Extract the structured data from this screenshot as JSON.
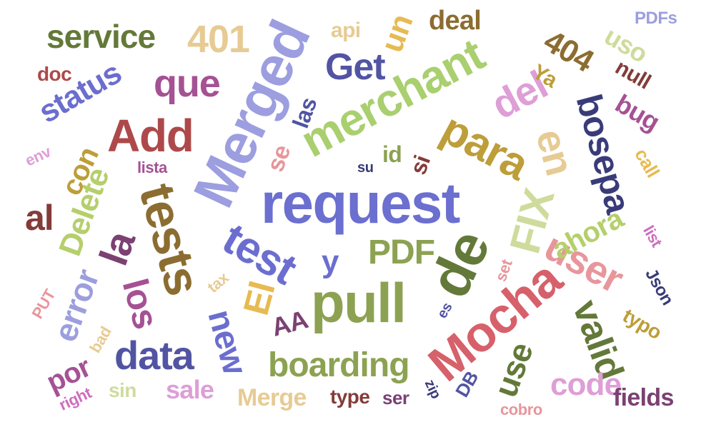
{
  "word_cloud": {
    "words": [
      {
        "text": "request",
        "color": "#6b6fcf"
      },
      {
        "text": "merchant",
        "color": "#a9cf6f"
      },
      {
        "text": "Merged",
        "color": "#9c9ee0"
      },
      {
        "text": "pull",
        "color": "#8ca252"
      },
      {
        "text": "de",
        "color": "#637939"
      },
      {
        "text": "Mocha",
        "color": "#d6616b"
      },
      {
        "text": "tests",
        "color": "#8c6d31"
      },
      {
        "text": "test",
        "color": "#6b6ecf"
      },
      {
        "text": "Add",
        "color": "#ad494a"
      },
      {
        "text": "para",
        "color": "#bd9e39"
      },
      {
        "text": "bosepa",
        "color": "#393b79"
      },
      {
        "text": "FIX",
        "color": "#cedb9c"
      },
      {
        "text": "user",
        "color": "#e7969c"
      },
      {
        "text": "en",
        "color": "#e7cb94"
      },
      {
        "text": "la",
        "color": "#7b4173"
      },
      {
        "text": "Delete",
        "color": "#b5cf6b"
      },
      {
        "text": "error",
        "color": "#9c9ede"
      },
      {
        "text": "valid",
        "color": "#637939"
      },
      {
        "text": "Get",
        "color": "#5254a3"
      },
      {
        "text": "que",
        "color": "#a55194"
      },
      {
        "text": "status",
        "color": "#6b6ecf"
      },
      {
        "text": "service",
        "color": "#637939"
      },
      {
        "text": "401",
        "color": "#e7cb94"
      },
      {
        "text": "404",
        "color": "#8c6d31"
      },
      {
        "text": "del",
        "color": "#de9ed6"
      },
      {
        "text": "los",
        "color": "#a55194"
      },
      {
        "text": "data",
        "color": "#5254a3"
      },
      {
        "text": "new",
        "color": "#6b6ecf"
      },
      {
        "text": "boarding",
        "color": "#8ca252"
      },
      {
        "text": "PDF",
        "color": "#8ca252"
      },
      {
        "text": "El",
        "color": "#e7ba52"
      },
      {
        "text": "code",
        "color": "#de9ed6"
      },
      {
        "text": "use",
        "color": "#637939"
      },
      {
        "text": "ahora",
        "color": "#b5cf6b"
      },
      {
        "text": "con",
        "color": "#bd9e39"
      },
      {
        "text": "al",
        "color": "#843c39"
      },
      {
        "text": "y",
        "color": "#6b6ecf"
      },
      {
        "text": "deal",
        "color": "#8c6d31"
      },
      {
        "text": "un",
        "color": "#e7ba52"
      },
      {
        "text": "api",
        "color": "#e7cb94"
      },
      {
        "text": "uso",
        "color": "#cedb9c"
      },
      {
        "text": "PDFs",
        "color": "#9c9ede"
      },
      {
        "text": "doc",
        "color": "#ad494a"
      },
      {
        "text": "Ya",
        "color": "#bd9e39"
      },
      {
        "text": "null",
        "color": "#843c39"
      },
      {
        "text": "bug",
        "color": "#a55194"
      },
      {
        "text": "las",
        "color": "#5254a3"
      },
      {
        "text": "se",
        "color": "#e7969c"
      },
      {
        "text": "id",
        "color": "#8ca252"
      },
      {
        "text": "si",
        "color": "#843c39"
      },
      {
        "text": "su",
        "color": "#393b79"
      },
      {
        "text": "env",
        "color": "#de9ed6"
      },
      {
        "text": "lista",
        "color": "#a55194"
      },
      {
        "text": "call",
        "color": "#e7ba52"
      },
      {
        "text": "list",
        "color": "#ce6dbd"
      },
      {
        "text": "Json",
        "color": "#393b79"
      },
      {
        "text": "set",
        "color": "#e7969c"
      },
      {
        "text": "tax",
        "color": "#e7cb94"
      },
      {
        "text": "PUT",
        "color": "#e7969c"
      },
      {
        "text": "bad",
        "color": "#e7cb94"
      },
      {
        "text": "AA",
        "color": "#7b4173"
      },
      {
        "text": "es",
        "color": "#5254a3"
      },
      {
        "text": "typo",
        "color": "#bd9e39"
      },
      {
        "text": "por",
        "color": "#a55194"
      },
      {
        "text": "sale",
        "color": "#de9ed6"
      },
      {
        "text": "sin",
        "color": "#cedb9c"
      },
      {
        "text": "Merge",
        "color": "#e7cb94"
      },
      {
        "text": "type",
        "color": "#843c39"
      },
      {
        "text": "ser",
        "color": "#7b4173"
      },
      {
        "text": "zip",
        "color": "#393b79"
      },
      {
        "text": "DB",
        "color": "#5254a3"
      },
      {
        "text": "right",
        "color": "#ce6dbd"
      },
      {
        "text": "cobro",
        "color": "#e7969c"
      },
      {
        "text": "fields",
        "color": "#7b4173"
      }
    ]
  }
}
